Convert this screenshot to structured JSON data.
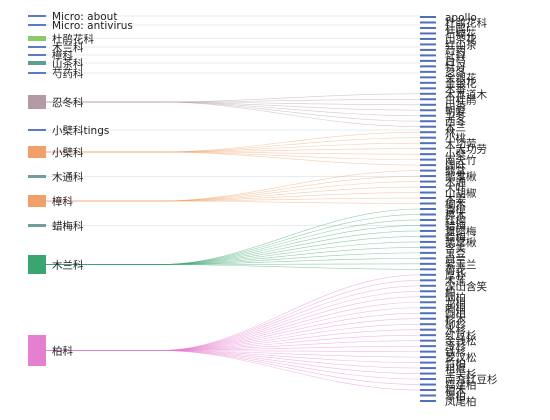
{
  "sources": [
    {
      "label": "Micro: about",
      "color": "#5b7cc4",
      "targets": []
    },
    {
      "label": "Micro: antivirus",
      "color": "#5b7cc4",
      "targets": []
    },
    {
      "label": "杜鹃花科",
      "color": "#8cc96a",
      "targets": []
    },
    {
      "label": "木兰科",
      "color": "#5b7cc4",
      "targets": []
    },
    {
      "label": "樟科",
      "color": "#5b7cc4",
      "targets": []
    },
    {
      "label": "山茶科",
      "color": "#5b9e92",
      "targets": []
    },
    {
      "label": "芍药科",
      "color": "#5b7cc4",
      "targets": []
    },
    {
      "label": "忍冬科",
      "color": "#b49aa6",
      "targets": [
        14,
        15,
        16,
        17,
        18,
        19,
        20
      ]
    },
    {
      "label": "小檗科tings",
      "color": "#5b7cc4",
      "targets": []
    },
    {
      "label": "小檗科",
      "color": "#f2a06a",
      "targets": [
        21,
        22,
        23,
        24,
        25,
        26,
        27
      ]
    },
    {
      "label": "木通科",
      "color": "#6f9e9c",
      "targets": []
    },
    {
      "label": "樟科",
      "color": "#f2a06a",
      "targets": [
        28,
        29,
        30,
        31,
        32,
        33,
        34
      ]
    },
    {
      "label": "蜡梅科",
      "color": "#6f9e9c",
      "targets": []
    },
    {
      "label": "木兰科",
      "color": "#3aa56e",
      "targets": [
        35,
        36,
        37,
        38,
        39,
        40,
        41,
        42,
        43,
        44,
        45,
        46
      ]
    },
    {
      "label": "柏科",
      "color": "#e57fd0",
      "targets": [
        47,
        48,
        49,
        50,
        51,
        52,
        53,
        54,
        55,
        56,
        57,
        58,
        59,
        60,
        61,
        62,
        63,
        64,
        65,
        66,
        67,
        68
      ]
    }
  ],
  "targets": [
    "apollo",
    "杜鹃花科",
    "杜鹃r",
    "石楠花",
    "山茶花",
    "红山茶",
    "芍药",
    "牡丹",
    "白芍",
    "牡丹",
    "忍冬",
    "金银花",
    "金银花",
    "木香",
    "木本道木",
    "白杜鹃",
    "山茶",
    "朝鲜",
    "卫冬",
    "西冬",
    "木兰",
    "林",
    "小桃",
    "大功劳",
    "十大功劳",
    "小檗",
    "南天竹",
    "阔叶",
    "鹅掌",
    "鹅掌楸",
    "木通",
    "大叶",
    "山胡椒",
    "木姜",
    "楠木",
    "香樟",
    "檫木",
    "红楠",
    "蜡梅",
    "夏蜡梅",
    "蜡梅",
    "鹅掌楸",
    "含笑",
    "玉兰",
    "白兰",
    "紫玉兰",
    "荷花",
    "厚朴",
    "木莲",
    "深山含笑",
    "柏",
    "侧柏",
    "龙柏",
    "刺柏",
    "圆柏",
    "杉木",
    "柳杉",
    "水杉",
    "红豆杉",
    "金钱松",
    "冷杉",
    "铁杉",
    "罗汉松",
    "竹柏",
    "粗榧",
    "三尖杉",
    "南方红豆杉",
    "福建柏",
    "柏木",
    "翠柏",
    "凤尾柏"
  ]
}
